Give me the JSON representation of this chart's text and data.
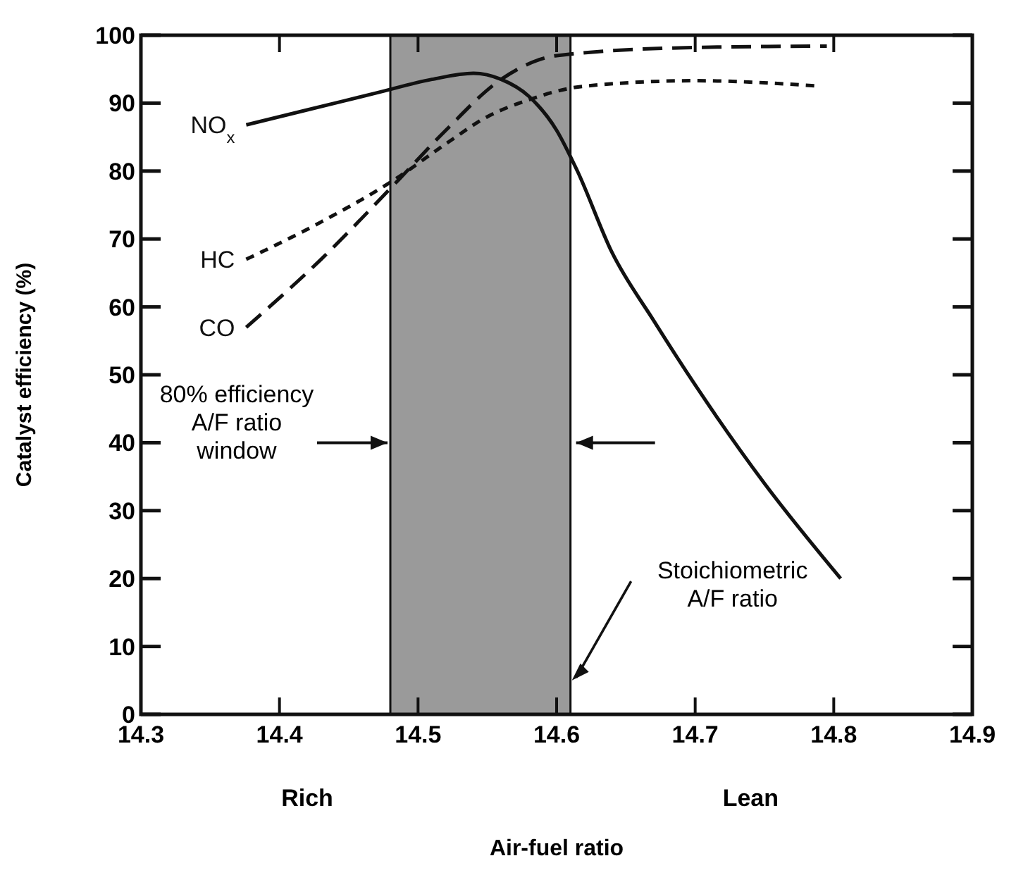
{
  "chart_data": {
    "type": "line",
    "xlabel": "Air-fuel ratio",
    "ylabel": "Catalyst efficiency (%)",
    "xlim": [
      14.3,
      14.9
    ],
    "xticks": [
      14.3,
      14.4,
      14.5,
      14.6,
      14.7,
      14.8,
      14.9
    ],
    "ylim": [
      0,
      100
    ],
    "yticks": [
      0,
      10,
      20,
      30,
      40,
      50,
      60,
      70,
      80,
      90,
      100
    ],
    "grid": false,
    "marker": "none",
    "series": [
      {
        "name": "NO$_{x}$",
        "color": "#111111",
        "line_style": "solid",
        "x": [
          14.376,
          14.42,
          14.47,
          14.51,
          14.54,
          14.56,
          14.58,
          14.6,
          14.615,
          14.64,
          14.67,
          14.7,
          14.75,
          14.805
        ],
        "values": [
          86.8,
          89,
          91.5,
          93.5,
          94.4,
          93.5,
          91,
          86,
          80,
          68,
          58,
          48.5,
          34,
          20
        ]
      },
      {
        "name": "HC",
        "color": "#111111",
        "line_style": "dotted",
        "x": [
          14.376,
          14.43,
          14.485,
          14.52,
          14.55,
          14.58,
          14.62,
          14.7,
          14.79
        ],
        "values": [
          67,
          72.5,
          79,
          84,
          88,
          90.5,
          92.5,
          93.3,
          92.5
        ]
      },
      {
        "name": "CO",
        "color": "#111111",
        "line_style": "dashed",
        "x": [
          14.376,
          14.43,
          14.485,
          14.52,
          14.56,
          14.6,
          14.7,
          14.795
        ],
        "values": [
          57,
          67,
          78.5,
          86,
          93.5,
          97,
          98.2,
          98.4
        ]
      }
    ],
    "bands": [
      {
        "axis": "x",
        "from": 14.48,
        "to": 14.61,
        "color": "#9a9a9a"
      }
    ],
    "annotations": [
      "80% efficiency\nA/F ratio\nwindow",
      {
        "text": "Stoichiometric\nA/F ratio",
        "x": 14.61,
        "y": 5
      },
      "Rich",
      "Lean"
    ]
  }
}
